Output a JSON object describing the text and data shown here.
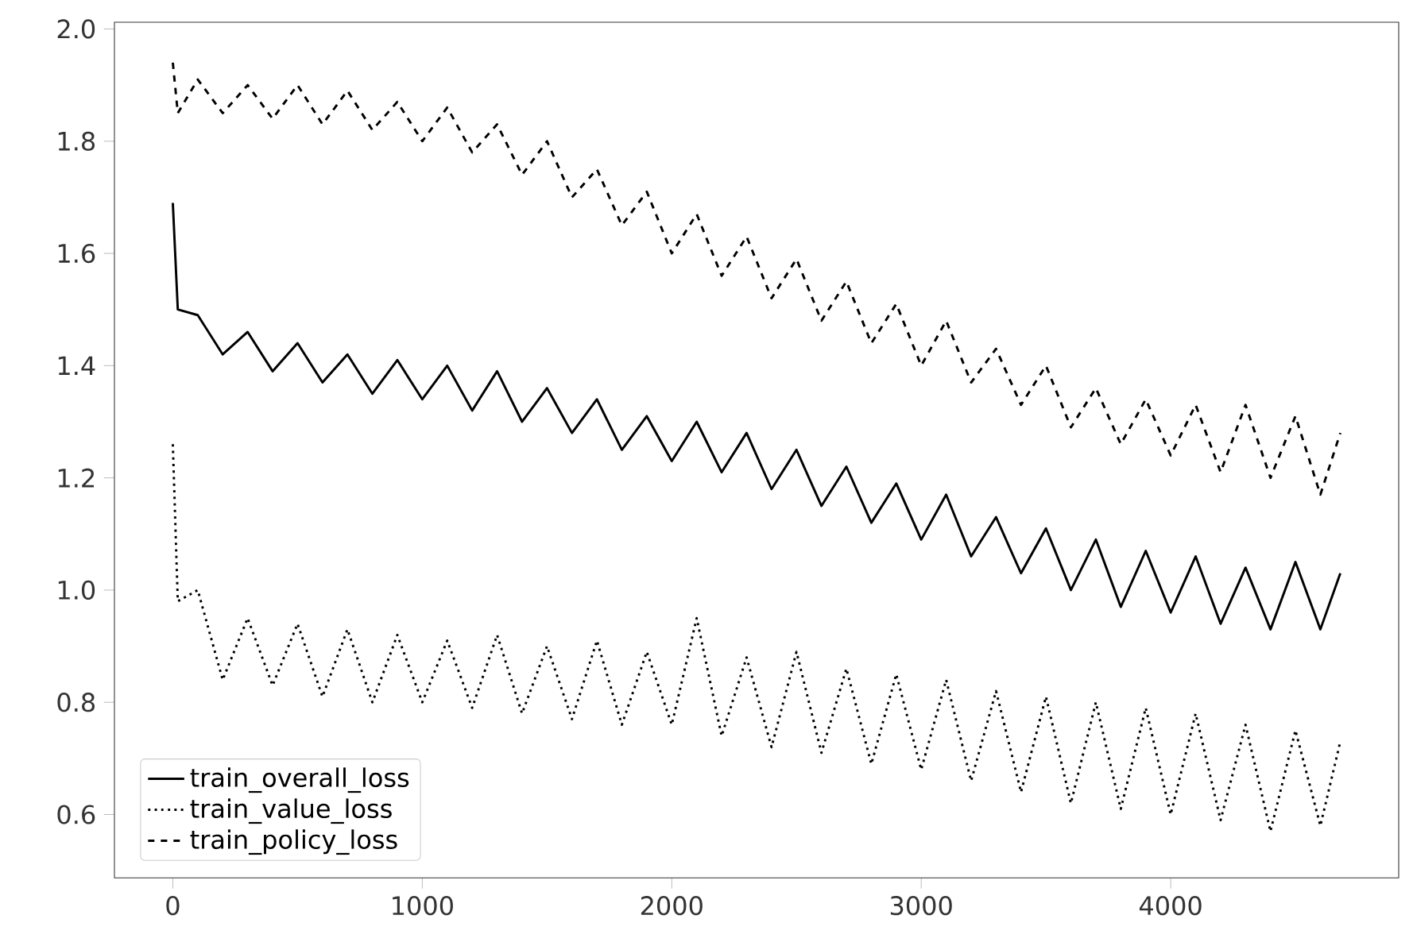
{
  "chart_data": {
    "type": "line",
    "x": [
      0,
      20,
      100,
      200,
      300,
      400,
      500,
      600,
      700,
      800,
      900,
      1000,
      1100,
      1200,
      1300,
      1400,
      1500,
      1600,
      1700,
      1800,
      1900,
      2000,
      2100,
      2200,
      2300,
      2400,
      2500,
      2600,
      2700,
      2800,
      2900,
      3000,
      3100,
      3200,
      3300,
      3400,
      3500,
      3600,
      3700,
      3800,
      3900,
      4000,
      4100,
      4200,
      4300,
      4400,
      4500,
      4600,
      4680
    ],
    "series": [
      {
        "name": "train_overall_loss",
        "color": "#000000",
        "line_style": "solid",
        "values": [
          1.69,
          1.5,
          1.49,
          1.42,
          1.46,
          1.39,
          1.44,
          1.37,
          1.42,
          1.35,
          1.41,
          1.34,
          1.4,
          1.32,
          1.39,
          1.3,
          1.36,
          1.28,
          1.34,
          1.25,
          1.31,
          1.23,
          1.3,
          1.21,
          1.28,
          1.18,
          1.25,
          1.15,
          1.22,
          1.12,
          1.19,
          1.09,
          1.17,
          1.06,
          1.13,
          1.03,
          1.11,
          1.0,
          1.09,
          0.97,
          1.07,
          0.96,
          1.06,
          0.94,
          1.04,
          0.93,
          1.05,
          0.93,
          1.03
        ]
      },
      {
        "name": "train_value_loss",
        "color": "#000000",
        "line_style": "dotted",
        "values": [
          1.26,
          0.98,
          1.0,
          0.84,
          0.95,
          0.83,
          0.94,
          0.81,
          0.93,
          0.8,
          0.92,
          0.8,
          0.91,
          0.79,
          0.92,
          0.78,
          0.9,
          0.77,
          0.91,
          0.76,
          0.89,
          0.76,
          0.95,
          0.74,
          0.88,
          0.72,
          0.89,
          0.71,
          0.86,
          0.69,
          0.85,
          0.68,
          0.84,
          0.66,
          0.82,
          0.64,
          0.81,
          0.62,
          0.8,
          0.61,
          0.79,
          0.6,
          0.78,
          0.59,
          0.76,
          0.57,
          0.75,
          0.58,
          0.73
        ]
      },
      {
        "name": "train_policy_loss",
        "color": "#000000",
        "line_style": "dashed",
        "values": [
          1.94,
          1.85,
          1.91,
          1.85,
          1.9,
          1.84,
          1.9,
          1.83,
          1.89,
          1.82,
          1.87,
          1.8,
          1.86,
          1.78,
          1.83,
          1.74,
          1.8,
          1.7,
          1.75,
          1.65,
          1.71,
          1.6,
          1.67,
          1.56,
          1.63,
          1.52,
          1.59,
          1.48,
          1.55,
          1.44,
          1.51,
          1.4,
          1.48,
          1.37,
          1.43,
          1.33,
          1.4,
          1.29,
          1.36,
          1.26,
          1.34,
          1.24,
          1.33,
          1.21,
          1.33,
          1.2,
          1.31,
          1.17,
          1.28
        ]
      }
    ],
    "xlim": [
      -234,
      4914
    ],
    "ylim": [
      0.487,
      2.012
    ],
    "xticks": [
      0,
      1000,
      2000,
      3000,
      4000
    ],
    "yticks": [
      0.6,
      0.8,
      {
        "value": 1.0,
        "label": "1.0"
      },
      1.2,
      1.4,
      1.6,
      1.8,
      {
        "value": 2.0,
        "label": "2.0"
      }
    ],
    "grid": false,
    "legend": "bottom left",
    "marker": "none"
  }
}
